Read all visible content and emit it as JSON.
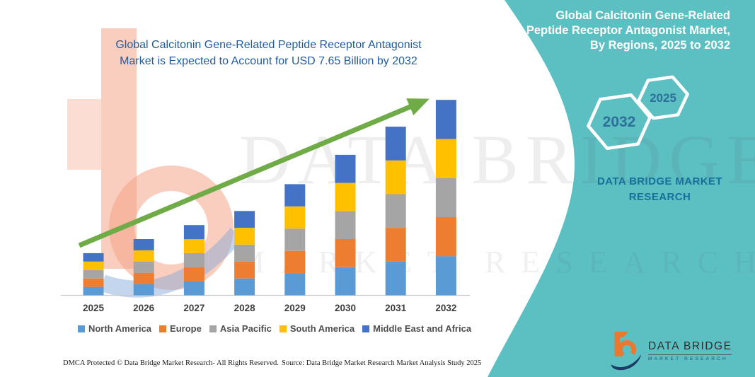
{
  "banner": {
    "title_lines": [
      "Global Calcitonin Gene-Related",
      "Peptide Receptor Antagonist Market,",
      "By Regions, 2025 to 2032"
    ],
    "hexagon_years": [
      "2032",
      "2025"
    ],
    "brand_lines": [
      "DATA BRIDGE MARKET",
      "RESEARCH"
    ],
    "teal_color": "#5CC0C3"
  },
  "chart": {
    "title_lines": [
      "Global Calcitonin Gene-Related Peptide Receptor Antagonist",
      "Market is Expected to Account for USD 7.65 Billion by 2032"
    ],
    "title_color": "#1e5c9e"
  },
  "chart_data": {
    "type": "bar",
    "stacked": true,
    "title": "Global Calcitonin Gene-Related Peptide Receptor Antagonist Market is Expected to Account for USD 7.65 Billion by 2032",
    "unit": "USD Billion (estimated from bar heights; no y-axis shown)",
    "categories": [
      "2025",
      "2026",
      "2027",
      "2028",
      "2029",
      "2030",
      "2031",
      "2032"
    ],
    "series": [
      {
        "name": "North America",
        "color": "#5B9BD5",
        "values": [
          0.33,
          0.44,
          0.55,
          0.66,
          0.87,
          1.1,
          1.32,
          1.53
        ]
      },
      {
        "name": "Europe",
        "color": "#ED7D31",
        "values": [
          0.33,
          0.44,
          0.55,
          0.66,
          0.87,
          1.1,
          1.32,
          1.53
        ]
      },
      {
        "name": "Asia Pacific",
        "color": "#A5A5A5",
        "values": [
          0.33,
          0.44,
          0.55,
          0.66,
          0.87,
          1.1,
          1.32,
          1.53
        ]
      },
      {
        "name": "South America",
        "color": "#FFC000",
        "values": [
          0.33,
          0.44,
          0.55,
          0.66,
          0.87,
          1.1,
          1.32,
          1.53
        ]
      },
      {
        "name": "Middle East and Africa",
        "color": "#4472C4",
        "values": [
          0.33,
          0.44,
          0.55,
          0.66,
          0.87,
          1.1,
          1.32,
          1.53
        ]
      }
    ],
    "totals_estimated": [
      1.63,
      2.21,
      2.74,
      3.32,
      4.37,
      5.48,
      6.59,
      7.65
    ],
    "highlight_value": "USD 7.65 Billion by 2032",
    "ylim": [
      0,
      8
    ],
    "gridlines": false,
    "y_axis_visible": false,
    "trend_arrow": true,
    "arrow_color": "#6FAC47",
    "legend_position": "bottom"
  },
  "watermark": {
    "line1": "DATA BRIDGE",
    "line2": "MARKET RESEARCH"
  },
  "footer": {
    "left": "DMCA Protected © Data Bridge Market Research-  All Rights Reserved.",
    "right": "Source: Data Bridge Market Research  Market Analysis Study 2025"
  },
  "logo": {
    "title": "DATA BRIDGE",
    "subtitle": "MARKET RESEARCH"
  }
}
